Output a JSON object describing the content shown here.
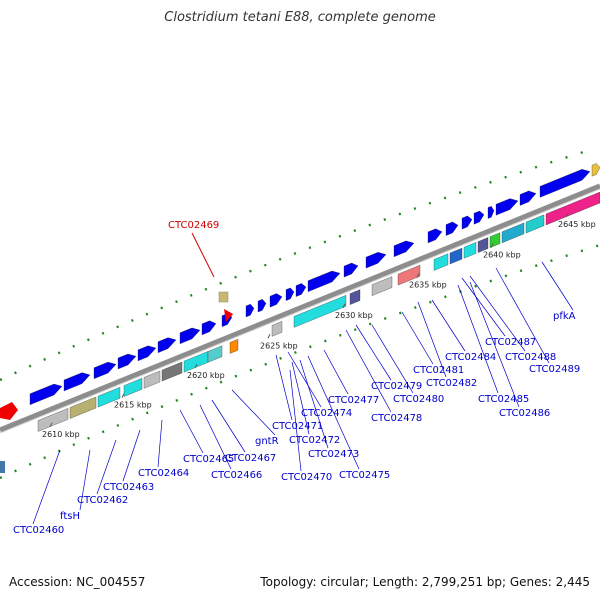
{
  "title": "Clostridium tetani E88, complete genome",
  "footer": {
    "accession": "Accession: NC_004557",
    "summary": "Topology: circular; Length: 2,799,251 bp; Genes: 2,445"
  },
  "kbp_ticks": [
    "2610 kbp",
    "2615 kbp",
    "2620 kbp",
    "2625 kbp",
    "2630 kbp",
    "2635 kbp",
    "2640 kbp",
    "2645 kbp"
  ],
  "highlighted_gene": "CTC02469",
  "gene_labels": [
    "CTC02460",
    "ftsH",
    "CTC02462",
    "CTC02463",
    "CTC02464",
    "CTC02465",
    "CTC02466",
    "CTC02467",
    "gntR",
    "CTC02470",
    "CTC02471",
    "CTC02472",
    "CTC02473",
    "CTC02474",
    "CTC02475",
    "CTC02477",
    "CTC02478",
    "CTC02479",
    "CTC02480",
    "CTC02481",
    "CTC02482",
    "CTC02484",
    "CTC02485",
    "CTC02486",
    "CTC02487",
    "CTC02488",
    "CTC02489",
    "pfkA"
  ],
  "colors": {
    "backbone": "#999999",
    "forward_gene": "#0000ee",
    "label_blue": "#0000cc",
    "label_red": "#cc0000",
    "gc_dots": "#228822"
  }
}
